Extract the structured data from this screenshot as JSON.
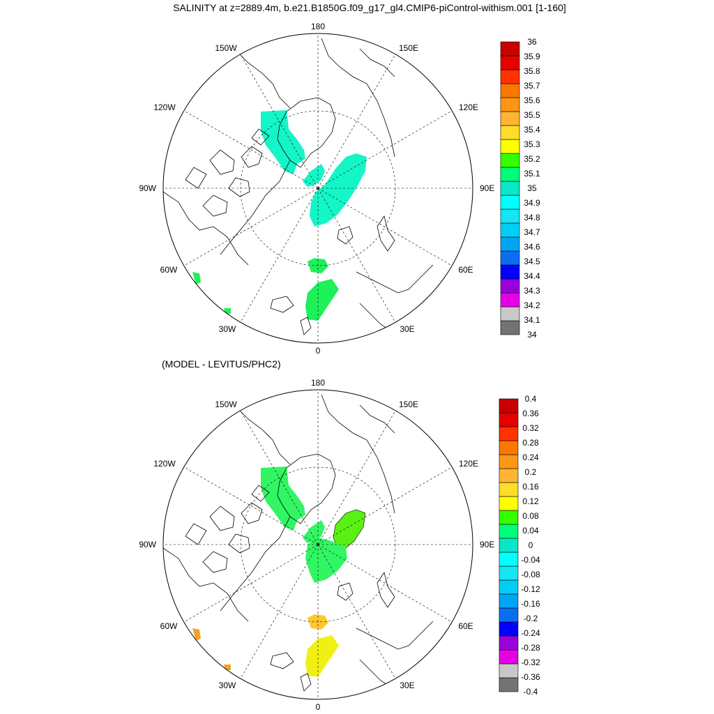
{
  "title": "SALINITY at z=2889.4m, b.e21.B1850G.f09_g17_gl4.CMIP6-piControl-withism.001 [1-160]",
  "subtitle": "(MODEL - LEVITUS/PHC2)",
  "longitude_labels": {
    "top": "180",
    "bottom": "0",
    "left": "90W",
    "right": "90E",
    "tl1": "150W",
    "tl2": "120W",
    "tr1": "150E",
    "tr2": "120E",
    "bl1": "60W",
    "bl2": "30W",
    "br1": "60E",
    "br2": "30E"
  },
  "colors": {
    "upper_colorbar": [
      "#737373",
      "#c8c8c8",
      "#e600e6",
      "#9a00dc",
      "#0000ff",
      "#0a6ef0",
      "#00a6f5",
      "#00cef5",
      "#14e6f5",
      "#00ffff",
      "#0ae6c8",
      "#00ff78",
      "#32ff00",
      "#ffff00",
      "#ffdc28",
      "#ffb432",
      "#ff9614",
      "#fa7800",
      "#ff3200",
      "#e60000",
      "#c80000"
    ],
    "diff_colorbar": [
      "#737373",
      "#c8c8c8",
      "#e600e6",
      "#9a00dc",
      "#0000ff",
      "#0a6ef0",
      "#00a6f5",
      "#00cef5",
      "#14e6f5",
      "#00ffff",
      "#0ae6c8",
      "#00ff78",
      "#32ff00",
      "#ffff00",
      "#ffdc28",
      "#ffb432",
      "#ff9614",
      "#fa7800",
      "#ff3200",
      "#e60000",
      "#c80000"
    ],
    "upper_arctic": "#14f5c8",
    "upper_atlantic": "#1ef05a",
    "diff_arctic": "#32f564",
    "diff_wedge": "#5af014",
    "diff_atlantic": "#f0f014",
    "diff_seam": "#ffc832",
    "diff_edge": "#f5a028"
  },
  "chart_data": [
    {
      "type": "heatmap",
      "title": "SALINITY at z=2889.4m, b.e21.B1850G.f09_g17_gl4.CMIP6-piControl-withism.001 [1-160]",
      "projection": "north polar stereographic",
      "colorbar_labels": [
        "36",
        "35.9",
        "35.8",
        "35.7",
        "35.6",
        "35.5",
        "35.4",
        "35.3",
        "35.2",
        "35.1",
        "35",
        "34.9",
        "34.8",
        "34.7",
        "34.6",
        "34.5",
        "34.4",
        "34.3",
        "34.2",
        "34.1",
        "34"
      ],
      "colorbar_range": [
        34,
        36
      ]
    },
    {
      "type": "heatmap",
      "title": "(MODEL - LEVITUS/PHC2)",
      "projection": "north polar stereographic",
      "colorbar_labels": [
        "0.4",
        "0.36",
        "0.32",
        "0.28",
        "0.24",
        "0.2",
        "0.16",
        "0.12",
        "0.08",
        "0.04",
        "0",
        "-0.04",
        "-0.08",
        "-0.12",
        "-0.16",
        "-0.2",
        "-0.24",
        "-0.28",
        "-0.32",
        "-0.36",
        "-0.4"
      ],
      "colorbar_range": [
        -0.4,
        0.4
      ]
    }
  ]
}
